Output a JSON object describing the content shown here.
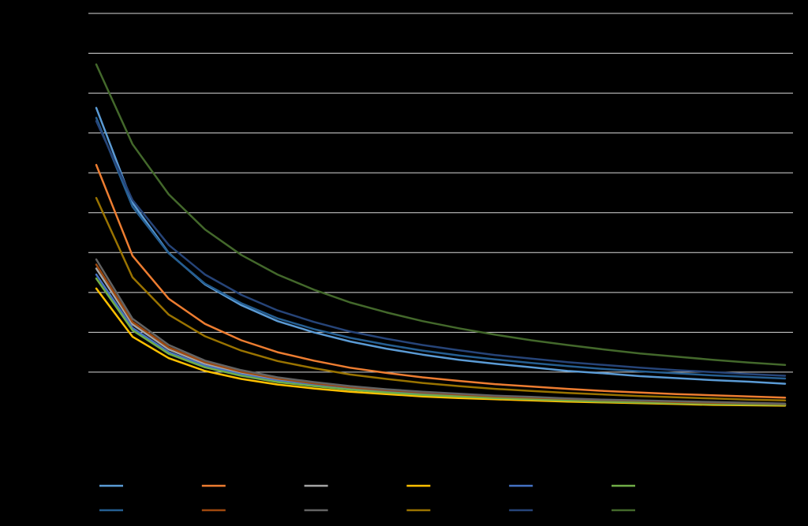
{
  "chart_data": {
    "type": "line",
    "categories": [
      null,
      null,
      null,
      null,
      null,
      null,
      null,
      null,
      null,
      null,
      null,
      null,
      null,
      null,
      null,
      null,
      null,
      null,
      null,
      null
    ],
    "ylim": [
      0,
      11
    ],
    "yticks": [
      2,
      3,
      4,
      5,
      6,
      7,
      8,
      9,
      10,
      11
    ],
    "grid": true,
    "legend": "bottom",
    "series": [
      {
        "color": "#5b9bd5",
        "values": [
          8.63,
          6.25,
          4.99,
          4.2,
          3.68,
          3.28,
          3.0,
          2.77,
          2.59,
          2.44,
          2.31,
          2.21,
          2.12,
          2.03,
          1.97,
          1.9,
          1.85,
          1.8,
          1.76,
          1.71
        ]
      },
      {
        "color": "#ed7d31",
        "values": [
          7.2,
          4.92,
          3.84,
          3.21,
          2.8,
          2.5,
          2.29,
          2.11,
          1.98,
          1.87,
          1.78,
          1.7,
          1.64,
          1.58,
          1.53,
          1.49,
          1.45,
          1.42,
          1.39,
          1.36
        ]
      },
      {
        "color": "#a5a5a5",
        "values": [
          4.6,
          3.2,
          2.57,
          2.21,
          1.98,
          1.81,
          1.7,
          1.6,
          1.53,
          1.47,
          1.43,
          1.38,
          1.35,
          1.31,
          1.29,
          1.27,
          1.24,
          1.23,
          1.21,
          1.2
        ]
      },
      {
        "color": "#ffc000",
        "values": [
          4.1,
          2.89,
          2.35,
          2.03,
          1.83,
          1.69,
          1.59,
          1.51,
          1.45,
          1.39,
          1.35,
          1.32,
          1.29,
          1.26,
          1.24,
          1.22,
          1.2,
          1.18,
          1.17,
          1.16
        ]
      },
      {
        "color": "#4472c4",
        "values": [
          4.45,
          3.11,
          2.5,
          2.16,
          1.94,
          1.78,
          1.67,
          1.57,
          1.51,
          1.45,
          1.4,
          1.36,
          1.33,
          1.3,
          1.27,
          1.25,
          1.23,
          1.21,
          1.2,
          1.18
        ]
      },
      {
        "color": "#70ad47",
        "values": [
          4.35,
          3.05,
          2.46,
          2.12,
          1.91,
          1.75,
          1.65,
          1.56,
          1.49,
          1.43,
          1.39,
          1.35,
          1.32,
          1.29,
          1.26,
          1.24,
          1.22,
          1.2,
          1.19,
          1.18
        ]
      },
      {
        "color": "#255e91",
        "values": [
          8.38,
          6.15,
          4.98,
          4.22,
          3.73,
          3.35,
          3.08,
          2.86,
          2.69,
          2.54,
          2.42,
          2.32,
          2.23,
          2.15,
          2.08,
          2.02,
          1.97,
          1.92,
          1.88,
          1.84
        ]
      },
      {
        "color": "#9e480e",
        "values": [
          4.7,
          3.26,
          2.62,
          2.25,
          2.01,
          1.84,
          1.72,
          1.62,
          1.55,
          1.49,
          1.44,
          1.39,
          1.36,
          1.33,
          1.3,
          1.28,
          1.25,
          1.23,
          1.22,
          1.2
        ]
      },
      {
        "color": "#636363",
        "values": [
          4.83,
          3.34,
          2.68,
          2.29,
          2.05,
          1.87,
          1.75,
          1.65,
          1.57,
          1.51,
          1.46,
          1.41,
          1.38,
          1.34,
          1.31,
          1.29,
          1.27,
          1.25,
          1.23,
          1.21
        ]
      },
      {
        "color": "#997300",
        "values": [
          6.37,
          4.38,
          3.44,
          2.9,
          2.54,
          2.28,
          2.1,
          1.94,
          1.83,
          1.73,
          1.65,
          1.58,
          1.53,
          1.48,
          1.44,
          1.4,
          1.37,
          1.34,
          1.31,
          1.29
        ]
      },
      {
        "color": "#264478",
        "values": [
          8.3,
          6.32,
          5.19,
          4.45,
          3.94,
          3.55,
          3.26,
          3.02,
          2.84,
          2.68,
          2.55,
          2.43,
          2.34,
          2.25,
          2.18,
          2.11,
          2.05,
          2.0,
          1.95,
          1.91
        ]
      },
      {
        "color": "#43682b",
        "values": [
          9.72,
          7.72,
          6.46,
          5.58,
          4.94,
          4.45,
          4.07,
          3.75,
          3.5,
          3.28,
          3.1,
          2.94,
          2.8,
          2.68,
          2.57,
          2.47,
          2.39,
          2.31,
          2.24,
          2.18
        ]
      }
    ]
  }
}
